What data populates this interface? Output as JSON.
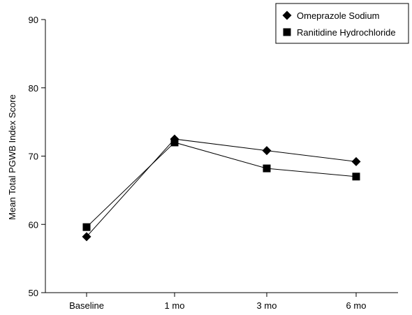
{
  "chart_data": {
    "type": "line",
    "categories": [
      "Baseline",
      "1 mo",
      "3 mo",
      "6 mo"
    ],
    "series": [
      {
        "name": "Omeprazole Sodium",
        "marker": "diamond",
        "values": [
          58.2,
          72.5,
          70.8,
          69.2
        ]
      },
      {
        "name": "Ranitidine Hydrochloride",
        "marker": "square",
        "values": [
          59.6,
          72.0,
          68.2,
          67.0
        ]
      }
    ],
    "ylabel": "Mean Total PGWB Index Score",
    "ylim": [
      50,
      90
    ],
    "yticks": [
      50,
      60,
      70,
      80,
      90
    ],
    "grid": false,
    "legend_position": "top-right",
    "colors": {
      "marker": "#000000",
      "line": "#000000"
    }
  }
}
